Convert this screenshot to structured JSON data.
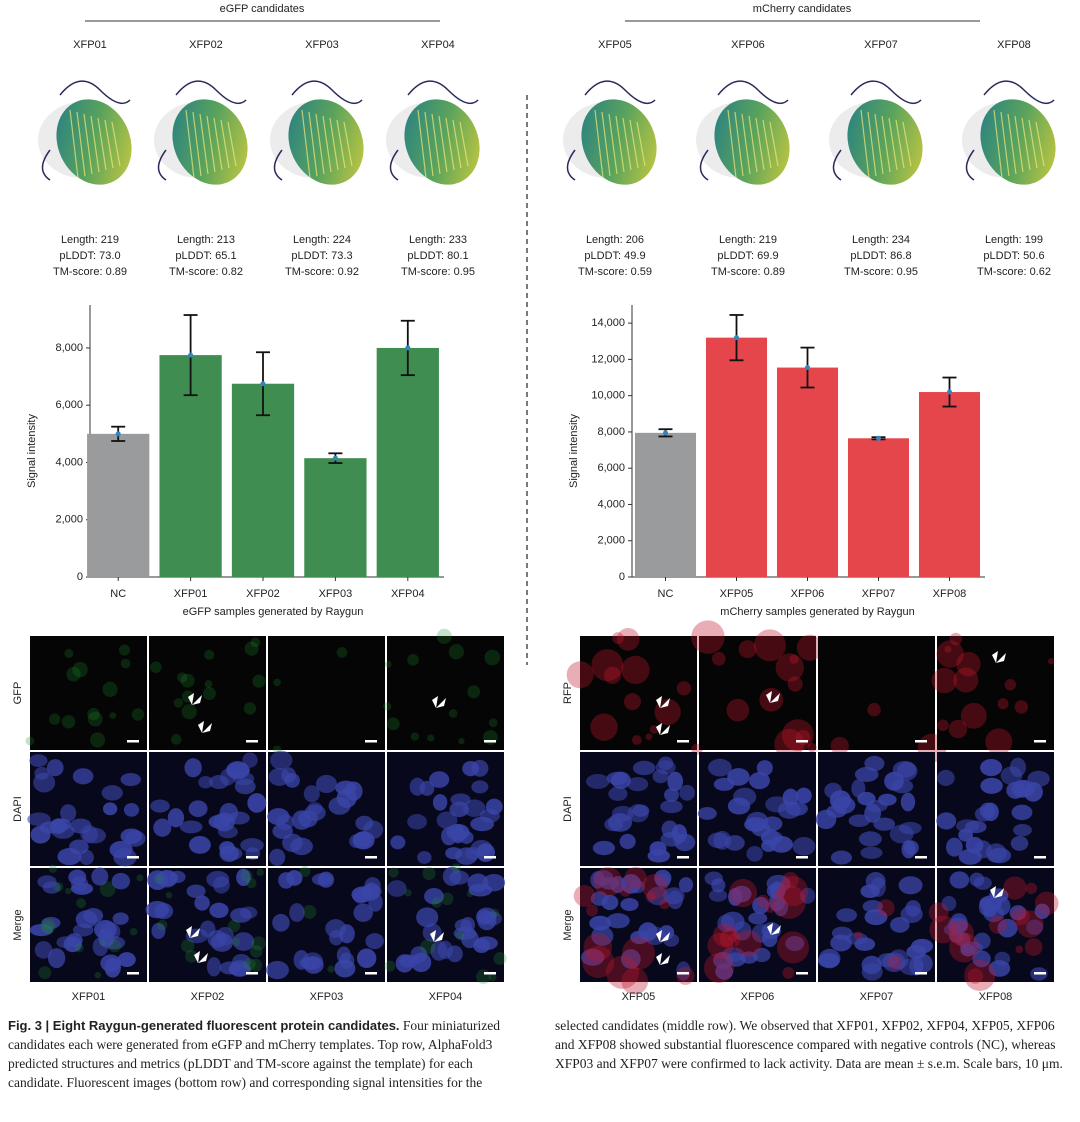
{
  "panels": [
    {
      "title": "eGFP candidates",
      "channels": [
        "GFP",
        "DAPI",
        "Merge"
      ],
      "candidates": [
        {
          "name": "XFP01",
          "metrics": [
            "Length: 219",
            "pLDDT: 73.0",
            "TM-score: 0.89"
          ]
        },
        {
          "name": "XFP02",
          "metrics": [
            "Length: 213",
            "pLDDT: 65.1",
            "TM-score: 0.82"
          ]
        },
        {
          "name": "XFP03",
          "metrics": [
            "Length: 224",
            "pLDDT: 73.3",
            "TM-score: 0.92"
          ]
        },
        {
          "name": "XFP04",
          "metrics": [
            "Length: 233",
            "pLDDT: 80.1",
            "TM-score: 0.95"
          ]
        }
      ]
    },
    {
      "title": "mCherry candidates",
      "channels": [
        "RFP",
        "DAPI",
        "Merge"
      ],
      "candidates": [
        {
          "name": "XFP05",
          "metrics": [
            "Length: 206",
            "pLDDT: 49.9",
            "TM-score: 0.59"
          ]
        },
        {
          "name": "XFP06",
          "metrics": [
            "Length: 219",
            "pLDDT: 69.9",
            "TM-score: 0.89"
          ]
        },
        {
          "name": "XFP07",
          "metrics": [
            "Length: 234",
            "pLDDT: 86.8",
            "TM-score: 0.95"
          ]
        },
        {
          "name": "XFP08",
          "metrics": [
            "Length: 199",
            "pLDDT: 50.6",
            "TM-score: 0.62"
          ]
        }
      ]
    }
  ],
  "chart_data": [
    {
      "type": "bar",
      "xlabel": "eGFP samples generated by Raygun",
      "ylabel": "Signal intensity",
      "categories": [
        "NC",
        "XFP01",
        "XFP02",
        "XFP03",
        "XFP04"
      ],
      "values": [
        5000,
        7750,
        6750,
        4150,
        8000
      ],
      "errors": [
        250,
        1400,
        1100,
        170,
        950
      ],
      "colors": [
        "#999b9d",
        "#3f8d50",
        "#3f8d50",
        "#3f8d50",
        "#3f8d50"
      ],
      "mean_color": "#2f86c0",
      "ylim": [
        0,
        9500
      ],
      "yticks": [
        0,
        {
          "value": 2000,
          "label": "2,000"
        },
        {
          "value": 4000,
          "label": "4,000"
        },
        {
          "value": 6000,
          "label": "6,000"
        },
        {
          "value": 8000,
          "label": "8,000"
        }
      ]
    },
    {
      "type": "bar",
      "xlabel": "mCherry samples generated by Raygun",
      "ylabel": "Signal intensity",
      "categories": [
        "NC",
        "XFP05",
        "XFP06",
        "XFP07",
        "XFP08"
      ],
      "values": [
        7950,
        13200,
        11550,
        7650,
        10200
      ],
      "errors": [
        200,
        1250,
        1100,
        60,
        800
      ],
      "colors": [
        "#999b9d",
        "#e5464b",
        "#e5464b",
        "#e5464b",
        "#e5464b"
      ],
      "mean_color": "#2f86c0",
      "ylim": [
        0,
        15000
      ],
      "yticks": [
        0,
        {
          "value": 2000,
          "label": "2,000"
        },
        {
          "value": 4000,
          "label": "4,000"
        },
        {
          "value": 6000,
          "label": "6,000"
        },
        {
          "value": 8000,
          "label": "8,000"
        },
        {
          "value": 10000,
          "label": "10,000"
        },
        {
          "value": 12000,
          "label": "12,000"
        },
        {
          "value": 14000,
          "label": "14,000"
        }
      ]
    }
  ],
  "caption": {
    "title": "Fig. 3 | Eight Raygun-generated fluorescent protein candidates.",
    "text": "Four miniaturized candidates each were generated from eGFP and mCherry templates. Top row, AlphaFold3 predicted structures and metrics (pLDDT and TM-score against the template) for each candidate. Fluorescent images (bottom row) and corresponding signal intensities for the selected candidates (middle row). We observed that XFP01, XFP02, XFP04, XFP05, XFP06 and XFP08 showed substantial fluorescence compared with negative controls (NC), whereas XFP03 and XFP07 were confirmed to lack activity. Data are mean ± s.e.m. Scale bars, 10 μm."
  }
}
